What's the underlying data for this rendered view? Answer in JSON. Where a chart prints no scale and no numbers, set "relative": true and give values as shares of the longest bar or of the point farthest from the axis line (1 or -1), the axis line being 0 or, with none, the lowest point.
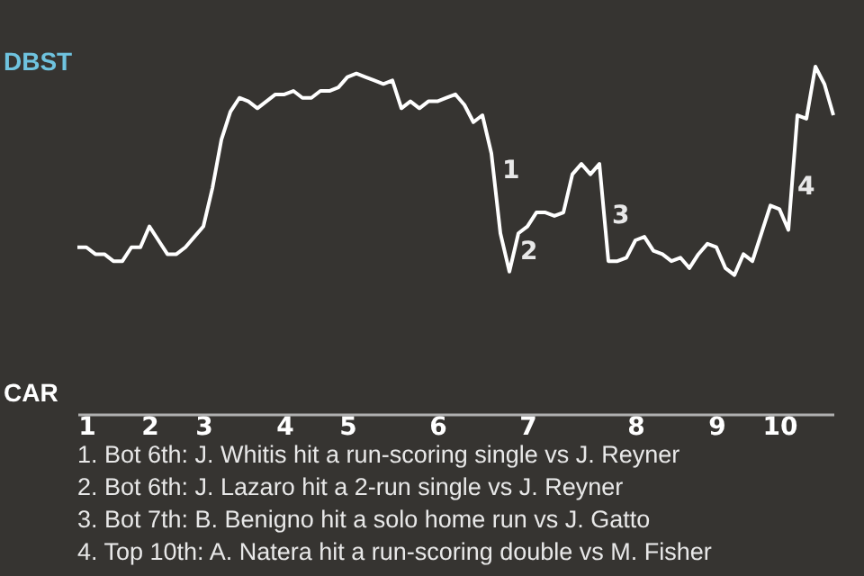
{
  "chart_data": {
    "type": "line",
    "relative": true,
    "categories": [
      null,
      "1",
      null,
      null,
      null,
      null,
      null,
      null,
      "2",
      null,
      null,
      null,
      null,
      null,
      "3",
      null,
      null,
      null,
      null,
      null,
      null,
      null,
      null,
      "4",
      null,
      null,
      null,
      null,
      null,
      null,
      "5",
      null,
      null,
      null,
      null,
      null,
      null,
      null,
      null,
      null,
      "6",
      null,
      null,
      null,
      null,
      null,
      null,
      null,
      null,
      null,
      "7",
      null,
      null,
      null,
      null,
      null,
      null,
      null,
      null,
      null,
      null,
      null,
      "8",
      null,
      null,
      null,
      null,
      null,
      null,
      null,
      null,
      "9",
      null,
      null,
      null,
      null,
      null,
      null,
      "10",
      null,
      null,
      null,
      null,
      null,
      null
    ],
    "values": [
      0.48,
      0.48,
      0.46,
      0.46,
      0.44,
      0.44,
      0.48,
      0.48,
      0.54,
      0.5,
      0.46,
      0.46,
      0.48,
      0.51,
      0.54,
      0.65,
      0.79,
      0.87,
      0.91,
      0.9,
      0.88,
      0.9,
      0.92,
      0.92,
      0.93,
      0.91,
      0.91,
      0.93,
      0.93,
      0.94,
      0.97,
      0.98,
      0.97,
      0.96,
      0.95,
      0.96,
      0.88,
      0.9,
      0.88,
      0.9,
      0.9,
      0.91,
      0.92,
      0.89,
      0.84,
      0.86,
      0.75,
      0.52,
      0.41,
      0.52,
      0.54,
      0.58,
      0.58,
      0.57,
      0.58,
      0.69,
      0.72,
      0.69,
      0.72,
      0.44,
      0.44,
      0.45,
      0.5,
      0.51,
      0.47,
      0.46,
      0.44,
      0.45,
      0.42,
      0.46,
      0.49,
      0.48,
      0.42,
      0.4,
      0.46,
      0.44,
      0.52,
      0.6,
      0.59,
      0.53,
      0.86,
      0.85,
      1.0,
      0.95,
      0.86
    ],
    "color": "#ffffff",
    "annotations": [
      "DBST",
      "CAR",
      "1",
      "2",
      "3",
      "4",
      "1. Bot 6th: J. Whitis hit a run-scoring single vs J. Reyner",
      "2. Bot 6th: J. Lazaro hit a 2-run single vs J. Reyner",
      "3. Bot 7th: B. Benigno hit a solo home run vs J. Gatto",
      "4. Top 10th: A. Natera hit a run-scoring double vs M. Fisher"
    ]
  }
}
